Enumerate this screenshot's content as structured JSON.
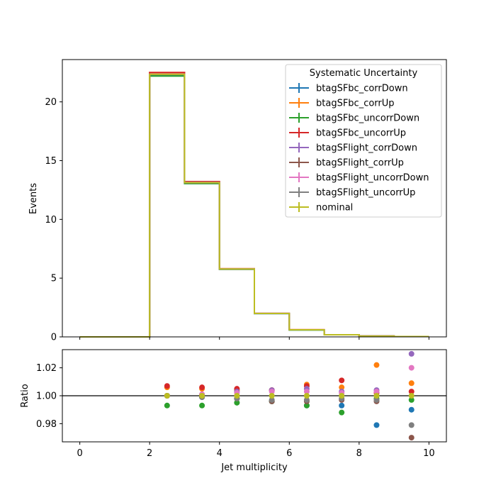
{
  "chart_data": [
    {
      "type": "line",
      "step": true,
      "ylabel": "Events",
      "xlim": [
        -0.5,
        10.5
      ],
      "ylim": [
        0,
        23.6
      ],
      "yticks": [
        0,
        5,
        10,
        15,
        20
      ],
      "grid": false,
      "legend": {
        "title": "Systematic Uncertainty",
        "placement": "top-right"
      },
      "bin_edges": [
        0,
        1,
        2,
        3,
        4,
        5,
        6,
        7,
        8,
        9,
        10
      ],
      "series": [
        {
          "name": "btagSFbc_corrDown",
          "color": "#1f77b4",
          "values": [
            0,
            0,
            22.25,
            13.05,
            5.76,
            1.98,
            0.59,
            0.18,
            0.07,
            0.03
          ]
        },
        {
          "name": "btagSFbc_corrUp",
          "color": "#ff7f0e",
          "values": [
            0,
            0,
            22.5,
            13.2,
            5.8,
            2.0,
            0.61,
            0.18,
            0.07,
            0.03
          ]
        },
        {
          "name": "btagSFbc_uncorrDown",
          "color": "#2ca02c",
          "values": [
            0,
            0,
            22.2,
            13.05,
            5.75,
            1.99,
            0.59,
            0.18,
            0.07,
            0.03
          ]
        },
        {
          "name": "btagSFbc_uncorrUp",
          "color": "#d62728",
          "values": [
            0,
            0,
            22.5,
            13.22,
            5.8,
            2.0,
            0.61,
            0.18,
            0.07,
            0.03
          ]
        },
        {
          "name": "btagSFlight_corrDown",
          "color": "#9467bd",
          "values": [
            0,
            0,
            22.35,
            13.15,
            5.79,
            2.0,
            0.6,
            0.18,
            0.07,
            0.03
          ]
        },
        {
          "name": "btagSFlight_corrUp",
          "color": "#8c564b",
          "values": [
            0,
            0,
            22.35,
            13.12,
            5.77,
            1.99,
            0.6,
            0.18,
            0.07,
            0.03
          ]
        },
        {
          "name": "btagSFlight_uncorrDown",
          "color": "#e377c2",
          "values": [
            0,
            0,
            22.36,
            13.14,
            5.79,
            2.0,
            0.6,
            0.18,
            0.07,
            0.03
          ]
        },
        {
          "name": "btagSFlight_uncorrUp",
          "color": "#7f7f7f",
          "values": [
            0,
            0,
            22.34,
            13.12,
            5.77,
            1.99,
            0.6,
            0.18,
            0.07,
            0.03
          ]
        },
        {
          "name": "nominal",
          "color": "#bcbd22",
          "values": [
            0,
            0,
            22.35,
            13.13,
            5.78,
            1.99,
            0.6,
            0.18,
            0.07,
            0.03
          ]
        }
      ]
    },
    {
      "type": "scatter",
      "xlabel": "Jet multiplicity",
      "ylabel": "Ratio",
      "xlim": [
        -0.5,
        10.5
      ],
      "ylim": [
        0.967,
        1.033
      ],
      "xticks": [
        0,
        2,
        4,
        6,
        8,
        10
      ],
      "yticks": [
        0.98,
        1.0,
        1.02
      ],
      "ytick_labels": [
        "0.98",
        "1.00",
        "1.02"
      ],
      "reference_line": 1.0,
      "x": [
        2.5,
        3.5,
        4.5,
        5.5,
        6.5,
        7.5,
        8.5,
        9.5
      ],
      "series": [
        {
          "name": "btagSFbc_corrDown",
          "color": "#1f77b4",
          "values": [
            1.0,
            0.999,
            0.998,
            0.996,
            0.993,
            0.993,
            0.979,
            0.99
          ]
        },
        {
          "name": "btagSFbc_corrUp",
          "color": "#ff7f0e",
          "values": [
            1.006,
            1.005,
            1.004,
            1.004,
            1.008,
            1.006,
            1.022,
            1.009
          ]
        },
        {
          "name": "btagSFbc_uncorrDown",
          "color": "#2ca02c",
          "values": [
            0.993,
            0.993,
            0.995,
            0.996,
            0.993,
            0.988,
            0.998,
            0.997
          ]
        },
        {
          "name": "btagSFbc_uncorrUp",
          "color": "#d62728",
          "values": [
            1.007,
            1.006,
            1.005,
            1.004,
            1.007,
            1.011,
            1.002,
            1.003
          ]
        },
        {
          "name": "btagSFlight_corrDown",
          "color": "#9467bd",
          "values": [
            1.0,
            1.001,
            1.003,
            1.004,
            1.005,
            1.003,
            1.004,
            1.03
          ]
        },
        {
          "name": "btagSFlight_corrUp",
          "color": "#8c564b",
          "values": [
            1.0,
            0.999,
            0.998,
            0.996,
            0.996,
            0.997,
            0.996,
            0.97
          ]
        },
        {
          "name": "btagSFlight_uncorrDown",
          "color": "#e377c2",
          "values": [
            1.0,
            1.001,
            1.002,
            1.003,
            1.003,
            1.002,
            1.003,
            1.02
          ]
        },
        {
          "name": "btagSFlight_uncorrUp",
          "color": "#7f7f7f",
          "values": [
            1.0,
            0.999,
            0.998,
            0.997,
            0.997,
            0.998,
            0.997,
            0.979
          ]
        },
        {
          "name": "nominal",
          "color": "#bcbd22",
          "values": [
            1.0,
            1.0,
            1.0,
            1.0,
            1.0,
            1.0,
            1.0,
            1.0
          ]
        }
      ]
    }
  ]
}
